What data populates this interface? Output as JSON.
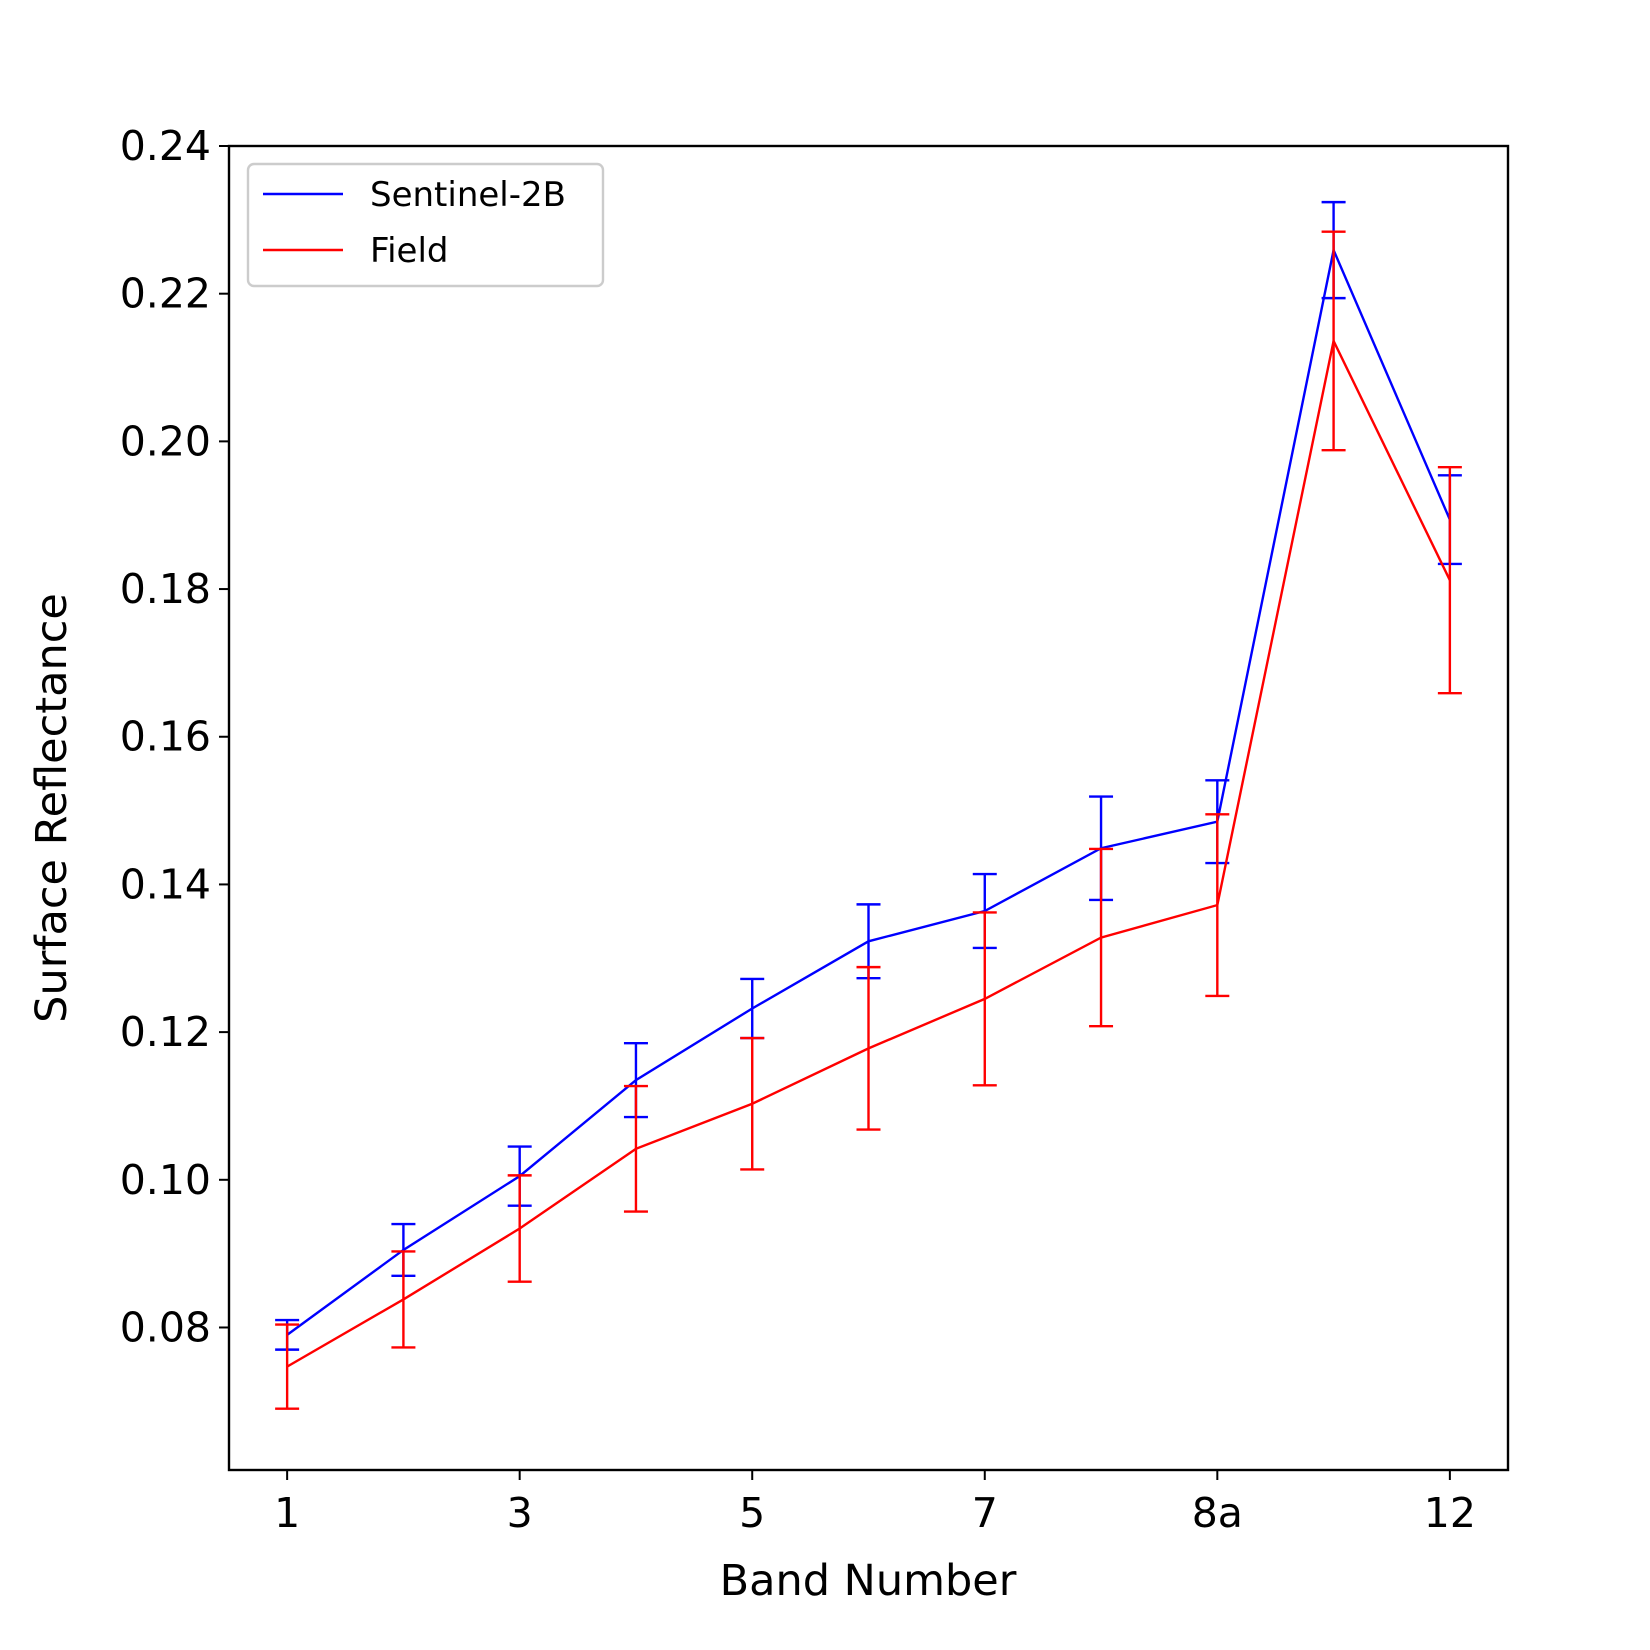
{
  "chart_data": {
    "type": "line",
    "x_label": "Band Number",
    "y_label": "Surface Reflectance",
    "categories": [
      "1",
      null,
      "3",
      null,
      "5",
      null,
      "7",
      null,
      "8a",
      null,
      "12"
    ],
    "series": [
      {
        "name": "Sentinel-2B",
        "color": "#0000ff",
        "values": [
          0.079,
          0.0905,
          0.1005,
          0.1135,
          0.1232,
          0.1323,
          0.1364,
          0.1449,
          0.1485,
          0.2259,
          0.1894
        ],
        "errors": [
          0.002,
          0.0035,
          0.004,
          0.005,
          0.004,
          0.005,
          0.005,
          0.007,
          0.0056,
          0.0065,
          0.006
        ]
      },
      {
        "name": "Field",
        "color": "#ff0000",
        "values": [
          0.0747,
          0.0838,
          0.0934,
          0.1042,
          0.1103,
          0.1178,
          0.1245,
          0.1328,
          0.1372,
          0.2136,
          0.1812
        ],
        "errors": [
          0.0057,
          0.0065,
          0.0072,
          0.0085,
          0.0089,
          0.011,
          0.0117,
          0.012,
          0.0123,
          0.0148,
          0.0153
        ]
      }
    ],
    "xlim": [
      -0.5,
      10.5
    ],
    "ylim": [
      0.0607,
      0.24
    ],
    "yticks": [
      0.08,
      {
        "value": 0.1,
        "label": "0.10"
      },
      0.12,
      0.14,
      0.16,
      0.18,
      {
        "value": 0.2,
        "label": "0.20"
      },
      0.22,
      0.24
    ],
    "legend": "upper left"
  }
}
